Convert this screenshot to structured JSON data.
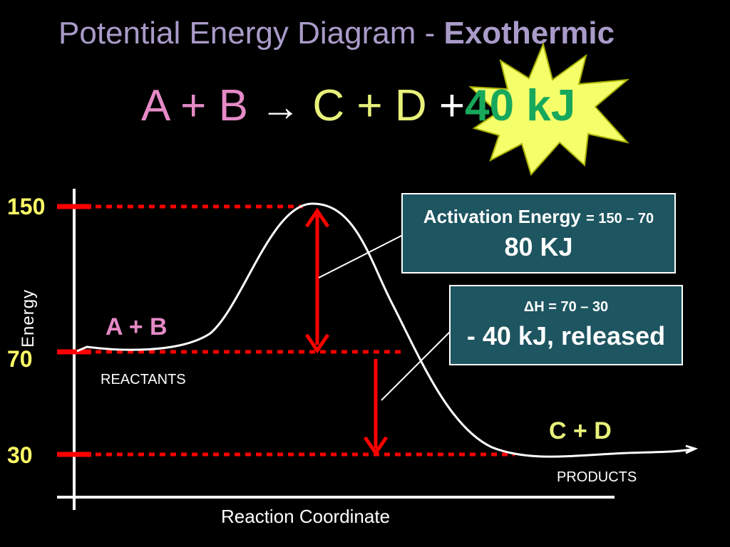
{
  "title": {
    "main": "Potential Energy Diagram - ",
    "bold": "Exothermic"
  },
  "equation": {
    "reactants": "A + B",
    "arrow": "→",
    "products": "C + D",
    "plus": "+",
    "energy": "40 kJ"
  },
  "axes": {
    "y_title": "Energy",
    "x_title": "Reaction Coordinate",
    "ticks": [
      "150",
      "70",
      "30"
    ]
  },
  "levels": {
    "peak": 150,
    "reactants": 70,
    "products": 30
  },
  "labels": {
    "reactants_species": "A + B",
    "reactants_caption": "REACTANTS",
    "products_species": "C + D",
    "products_caption": "PRODUCTS"
  },
  "activation_box": {
    "heading": "Activation Energy",
    "equation": "= 150 – 70",
    "value": "80 KJ"
  },
  "enthalpy_box": {
    "equation": "ΔH = 70 – 30",
    "value": "- 40 kJ, released"
  },
  "colors": {
    "background": "#000000",
    "title": "#a99bc9",
    "reactants": "#e58ac7",
    "products": "#e8f27a",
    "energy_release": "#17a85b",
    "burst": "#f4ff6a",
    "ticks": "#ffff66",
    "marker": "#ff0000",
    "box_fill": "#1d5560"
  }
}
